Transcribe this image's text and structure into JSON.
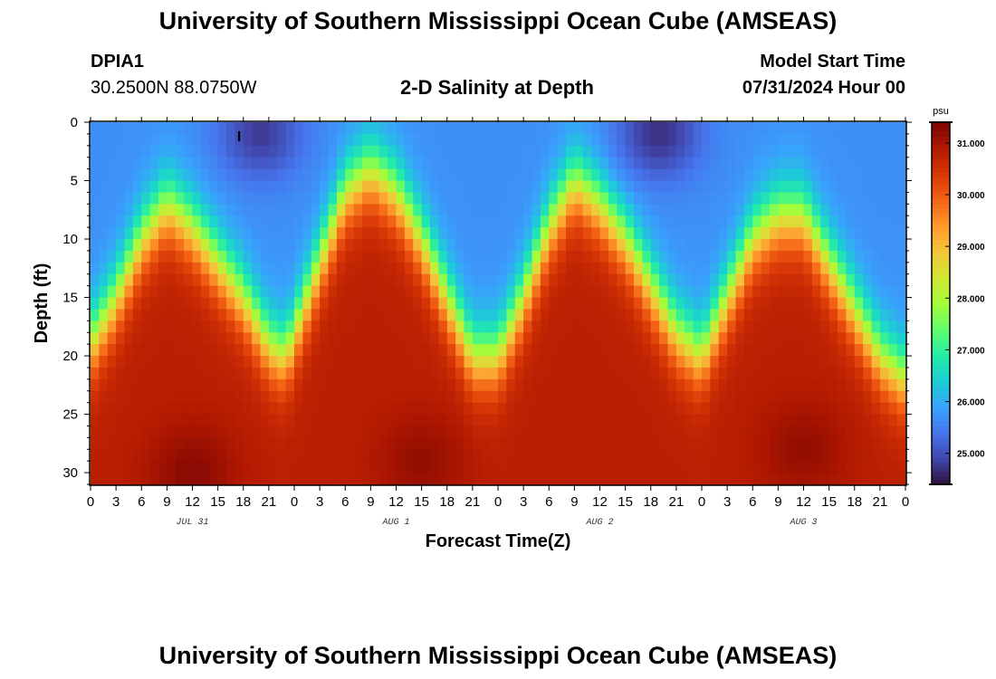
{
  "title": "University of Southern Mississippi Ocean Cube (AMSEAS)",
  "footer_title": "University of Southern Mississippi Ocean Cube (AMSEAS)",
  "station": {
    "id": "DPIA1",
    "coords": "30.2500N  88.0750W"
  },
  "subtitle": "2-D Salinity at Depth",
  "model_start": {
    "label": "Model Start Time",
    "value": "07/31/2024 Hour 00"
  },
  "chart_data": {
    "type": "heatmap",
    "title": "2-D Salinity at Depth",
    "xlabel": "Forecast Time(Z)",
    "ylabel": "Depth (ft)",
    "x_range_hours": [
      0,
      96
    ],
    "y_range_ft": [
      0,
      31
    ],
    "y_inverted": true,
    "x_ticks": [
      "0",
      "3",
      "6",
      "9",
      "12",
      "15",
      "18",
      "21",
      "0",
      "3",
      "6",
      "9",
      "12",
      "15",
      "18",
      "21",
      "0",
      "3",
      "6",
      "9",
      "12",
      "15",
      "18",
      "21",
      "0",
      "3",
      "6",
      "9",
      "12",
      "15",
      "18",
      "21",
      "0"
    ],
    "date_labels": [
      {
        "text": "JUL 31",
        "hour": 12
      },
      {
        "text": "AUG 1",
        "hour": 36
      },
      {
        "text": "AUG 2",
        "hour": 60
      },
      {
        "text": "AUG 3",
        "hour": 84
      }
    ],
    "y_ticks": [
      "0",
      "5",
      "10",
      "15",
      "20",
      "25",
      "30"
    ],
    "y_tick_values": [
      0,
      5,
      10,
      15,
      20,
      25,
      30
    ],
    "colorbar": {
      "unit": "psu",
      "min": 24.4,
      "max": 31.4,
      "tick_values": [
        25,
        26,
        27,
        28,
        29,
        30,
        31
      ],
      "tick_labels": [
        "25.000",
        "26.000",
        "27.000",
        "28.000",
        "29.000",
        "30.000",
        "31.000"
      ],
      "colors": [
        "#30123b",
        "#4145ab",
        "#4675ed",
        "#39a2fc",
        "#1bcfd4",
        "#24eca6",
        "#61fc6c",
        "#a4fc3b",
        "#d1e834",
        "#f3c63a",
        "#fe9b2d",
        "#f36315",
        "#d93806",
        "#b11901",
        "#7a0402"
      ]
    },
    "thermocline_depth_anchors": {
      "hours": [
        0,
        3,
        6,
        9,
        12,
        15,
        18,
        21,
        23,
        24,
        27,
        30,
        33,
        36,
        39,
        42,
        45,
        48,
        51,
        54,
        57,
        60,
        63,
        66,
        69,
        72,
        75,
        78,
        81,
        84,
        87,
        90,
        93,
        96
      ],
      "depth_ft": [
        19,
        15,
        10,
        7,
        9,
        12,
        15,
        19,
        20,
        18,
        12,
        6,
        4,
        6,
        10,
        15,
        20,
        20,
        15,
        9,
        5,
        7,
        10,
        14,
        18,
        20,
        15,
        10,
        8,
        8,
        12,
        16,
        20,
        22
      ]
    },
    "salinity_profile": {
      "surface_psu": 25.7,
      "deep_psu": 30.8,
      "pockets": [
        {
          "hour": 12,
          "depth_ft": 30,
          "psu": 31.3
        },
        {
          "hour": 39,
          "depth_ft": 29,
          "psu": 31.2
        },
        {
          "hour": 84,
          "depth_ft": 28,
          "psu": 31.2
        },
        {
          "hour": 20,
          "depth_ft": 1,
          "psu": 24.7
        },
        {
          "hour": 67,
          "depth_ft": 1,
          "psu": 24.6
        }
      ]
    },
    "annotation": {
      "text": "I",
      "hour": 17.5,
      "depth_ft": 1
    }
  }
}
